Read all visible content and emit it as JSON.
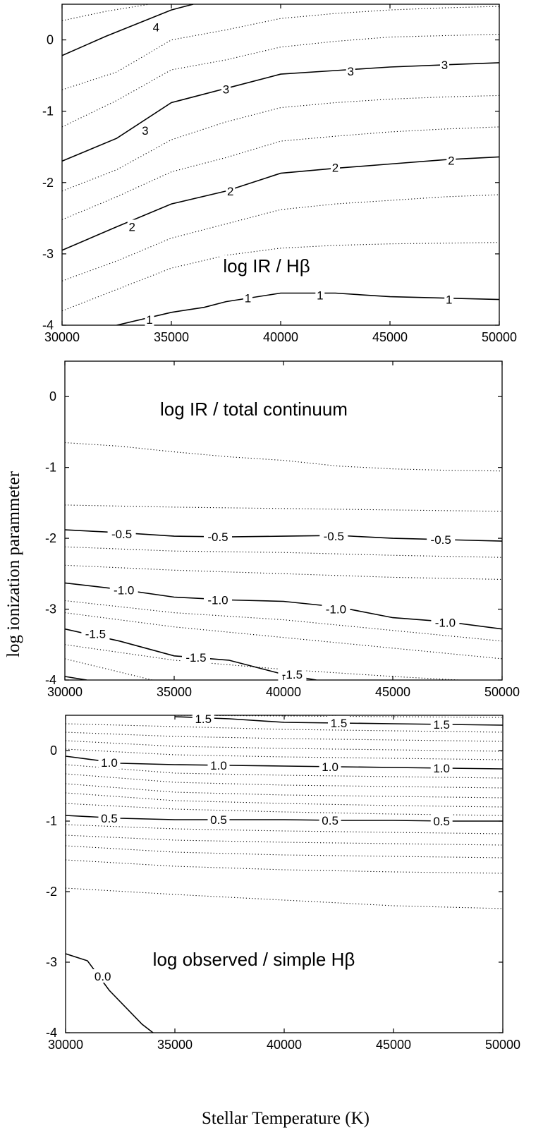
{
  "figure": {
    "xlabel": "Stellar Temperature (K)",
    "ylabel": "log ionization parammeter"
  },
  "chart_data": [
    {
      "type": "line",
      "subtype": "contour",
      "title": "log IR / Hβ",
      "x_ticks": [
        "30000",
        "35000",
        "40000",
        "45000",
        "50000"
      ],
      "y_ticks": [
        "0",
        "-1",
        "-2",
        "-3",
        "-4"
      ],
      "xlim": [
        30000,
        50000
      ],
      "ylim": [
        -4,
        0.5
      ],
      "levels": [
        {
          "label": "4",
          "style": "solid",
          "x": [
            30000,
            32000,
            35000,
            36000
          ],
          "y": [
            -0.22,
            0.05,
            0.42,
            0.5
          ],
          "label_at": [
            [
              34300,
              0.18
            ]
          ]
        },
        {
          "label": "3",
          "style": "solid",
          "x": [
            30000,
            32500,
            35000,
            37500,
            40000,
            42500,
            45000,
            47500,
            50000
          ],
          "y": [
            -1.7,
            -1.38,
            -0.88,
            -0.68,
            -0.48,
            -0.43,
            -0.38,
            -0.35,
            -0.32
          ],
          "label_at": [
            [
              33800,
              -1.27
            ],
            [
              37500,
              -0.69
            ],
            [
              43200,
              -0.44
            ],
            [
              47500,
              -0.35
            ]
          ]
        },
        {
          "label": "2",
          "style": "solid",
          "x": [
            30000,
            32500,
            35000,
            37500,
            40000,
            42500,
            45000,
            47500,
            50000
          ],
          "y": [
            -2.95,
            -2.62,
            -2.3,
            -2.12,
            -1.87,
            -1.8,
            -1.74,
            -1.68,
            -1.64
          ],
          "label_at": [
            [
              33200,
              -2.62
            ],
            [
              37700,
              -2.12
            ],
            [
              42500,
              -1.79
            ],
            [
              47800,
              -1.69
            ]
          ]
        },
        {
          "label": "1",
          "style": "solid",
          "x": [
            32500,
            35000,
            36500,
            37500,
            40000,
            42500,
            45000,
            47500,
            50000
          ],
          "y": [
            -4.0,
            -3.82,
            -3.75,
            -3.67,
            -3.55,
            -3.55,
            -3.6,
            -3.62,
            -3.64
          ],
          "label_at": [
            [
              34000,
              -3.92
            ],
            [
              38500,
              -3.62
            ],
            [
              41800,
              -3.58
            ],
            [
              47700,
              -3.64
            ]
          ]
        },
        {
          "style": "dotted",
          "x": [
            30000,
            32000,
            34000,
            36000
          ],
          "y": [
            0.27,
            0.4,
            0.5,
            0.5
          ]
        },
        {
          "style": "dotted",
          "x": [
            30000,
            32500,
            35000,
            37500,
            40000,
            42500,
            45000,
            47500,
            50000
          ],
          "y": [
            -0.7,
            -0.45,
            0.0,
            0.14,
            0.3,
            0.37,
            0.42,
            0.45,
            0.47
          ]
        },
        {
          "style": "dotted",
          "x": [
            30000,
            32500,
            35000,
            37500,
            40000,
            42500,
            45000,
            47500,
            50000
          ],
          "y": [
            -1.22,
            -0.85,
            -0.42,
            -0.28,
            -0.1,
            -0.02,
            0.04,
            0.06,
            0.08
          ]
        },
        {
          "style": "dotted",
          "x": [
            30000,
            32500,
            35000,
            37500,
            40000,
            42500,
            45000,
            47500,
            50000
          ],
          "y": [
            -2.12,
            -1.82,
            -1.4,
            -1.15,
            -0.95,
            -0.88,
            -0.83,
            -0.8,
            -0.78
          ]
        },
        {
          "style": "dotted",
          "x": [
            30000,
            32500,
            35000,
            37500,
            40000,
            42500,
            45000,
            47500,
            50000
          ],
          "y": [
            -2.52,
            -2.2,
            -1.85,
            -1.65,
            -1.42,
            -1.35,
            -1.29,
            -1.25,
            -1.22
          ]
        },
        {
          "style": "dotted",
          "x": [
            30000,
            32500,
            35000,
            37500,
            40000,
            42500,
            45000,
            47500,
            50000
          ],
          "y": [
            -3.38,
            -3.1,
            -2.78,
            -2.58,
            -2.38,
            -2.3,
            -2.25,
            -2.2,
            -2.17
          ]
        },
        {
          "style": "dotted",
          "x": [
            30000,
            32500,
            35000,
            37500,
            40000,
            42500,
            45000,
            47500,
            50000
          ],
          "y": [
            -3.8,
            -3.5,
            -3.2,
            -3.02,
            -2.92,
            -2.88,
            -2.86,
            -2.85,
            -2.84
          ]
        }
      ]
    },
    {
      "type": "line",
      "subtype": "contour",
      "title": "log IR / total continuum",
      "x_ticks": [
        "30000",
        "35000",
        "40000",
        "45000",
        "50000"
      ],
      "y_ticks": [
        "0",
        "-1",
        "-2",
        "-3",
        "-4"
      ],
      "xlim": [
        30000,
        50000
      ],
      "ylim": [
        -4,
        0.5
      ],
      "levels": [
        {
          "style": "dotted",
          "x": [
            30000,
            32500,
            35000,
            37500,
            40000,
            42500,
            45000,
            47500,
            50000
          ],
          "y": [
            -0.65,
            -0.7,
            -0.78,
            -0.85,
            -0.9,
            -0.98,
            -1.02,
            -1.04,
            -1.05
          ]
        },
        {
          "style": "dotted",
          "x": [
            30000,
            35000,
            40000,
            45000,
            50000
          ],
          "y": [
            -1.53,
            -1.56,
            -1.58,
            -1.6,
            -1.62
          ]
        },
        {
          "label": "-0.5",
          "style": "solid",
          "x": [
            30000,
            32500,
            35000,
            37500,
            40000,
            42500,
            45000,
            47500,
            50000
          ],
          "y": [
            -1.88,
            -1.92,
            -1.97,
            -1.98,
            -1.97,
            -1.96,
            -2.0,
            -2.02,
            -2.04
          ]
        },
        {
          "style": "dotted",
          "x": [
            30000,
            35000,
            40000,
            45000,
            50000
          ],
          "y": [
            -2.12,
            -2.18,
            -2.2,
            -2.24,
            -2.27
          ]
        },
        {
          "style": "dotted",
          "x": [
            30000,
            35000,
            40000,
            45000,
            50000
          ],
          "y": [
            -2.38,
            -2.45,
            -2.5,
            -2.55,
            -2.58
          ]
        },
        {
          "label": "-1.0",
          "style": "solid",
          "x": [
            30000,
            32500,
            35000,
            37500,
            40000,
            42500,
            45000,
            47500,
            50000
          ],
          "y": [
            -2.63,
            -2.72,
            -2.83,
            -2.87,
            -2.89,
            -2.97,
            -3.12,
            -3.18,
            -3.28
          ]
        },
        {
          "style": "dotted",
          "x": [
            30000,
            35000,
            40000,
            45000,
            50000
          ],
          "y": [
            -2.88,
            -3.05,
            -3.15,
            -3.3,
            -3.45
          ]
        },
        {
          "style": "dotted",
          "x": [
            30000,
            35000,
            40000,
            45000,
            50000
          ],
          "y": [
            -3.05,
            -3.25,
            -3.4,
            -3.55,
            -3.7
          ]
        },
        {
          "label": "-1.5",
          "style": "solid",
          "x": [
            30000,
            32500,
            35000,
            37500,
            40000,
            41500
          ],
          "y": [
            -3.28,
            -3.45,
            -3.66,
            -3.72,
            -3.92,
            -4.0
          ]
        },
        {
          "style": "dotted",
          "x": [
            30000,
            35000,
            40000,
            45000,
            48000
          ],
          "y": [
            -3.5,
            -3.72,
            -3.85,
            -3.95,
            -4.0
          ]
        },
        {
          "style": "dotted",
          "x": [
            30000,
            32000,
            34000
          ],
          "y": [
            -3.7,
            -3.85,
            -4.0
          ]
        },
        {
          "style": "solid",
          "x": [
            30000,
            31000
          ],
          "y": [
            -3.95,
            -4.0
          ]
        }
      ],
      "labels": [
        {
          "text": "-0.5",
          "x": [
            32600,
            37000,
            42300,
            47200
          ],
          "y": [
            -1.94,
            -1.98,
            -1.97,
            -2.02
          ]
        },
        {
          "text": "-1.0",
          "x": [
            32700,
            37000,
            42400,
            47400
          ],
          "y": [
            -2.73,
            -2.87,
            -3.0,
            -3.19
          ]
        },
        {
          "text": "-1.5",
          "x": [
            31400,
            36000,
            40400
          ],
          "y": [
            -3.35,
            -3.68,
            -3.92
          ]
        }
      ]
    },
    {
      "type": "line",
      "subtype": "contour",
      "title": "log observed / simple Hβ",
      "x_ticks": [
        "30000",
        "35000",
        "40000",
        "45000",
        "50000"
      ],
      "y_ticks": [
        "0",
        "-1",
        "-2",
        "-3",
        "-4"
      ],
      "xlim": [
        30000,
        50000
      ],
      "ylim": [
        -4,
        0.5
      ],
      "levels": [
        {
          "label": "1.5",
          "style": "solid",
          "x": [
            35000,
            37500,
            40000,
            42500,
            45000,
            47500,
            50000
          ],
          "y": [
            0.48,
            0.45,
            0.4,
            0.39,
            0.38,
            0.37,
            0.36
          ]
        },
        {
          "label": "1.0",
          "style": "solid",
          "x": [
            30000,
            32500,
            35000,
            37500,
            40000,
            42500,
            45000,
            47500,
            50000
          ],
          "y": [
            -0.08,
            -0.18,
            -0.2,
            -0.21,
            -0.22,
            -0.23,
            -0.24,
            -0.25,
            -0.26
          ]
        },
        {
          "label": "0.5",
          "style": "solid",
          "x": [
            30000,
            32500,
            35000,
            37500,
            40000,
            42500,
            45000,
            47500,
            50000
          ],
          "y": [
            -0.92,
            -0.96,
            -0.98,
            -0.98,
            -0.98,
            -0.99,
            -0.99,
            -1.0,
            -1.0
          ]
        },
        {
          "label": "0.0",
          "style": "solid",
          "x": [
            30000,
            31000,
            32000,
            33500,
            34000
          ],
          "y": [
            -2.88,
            -2.98,
            -3.4,
            -3.88,
            -4.0
          ]
        },
        {
          "style": "dotted",
          "x": [
            30000,
            35000,
            40000,
            45000,
            50000
          ],
          "y": [
            0.5,
            0.5,
            0.49,
            0.48,
            0.47
          ]
        },
        {
          "style": "dotted",
          "x": [
            30000,
            35000,
            40000,
            45000,
            50000
          ],
          "y": [
            0.38,
            0.34,
            0.3,
            0.28,
            0.26
          ]
        },
        {
          "style": "dotted",
          "x": [
            30000,
            35000,
            40000,
            45000,
            50000
          ],
          "y": [
            0.26,
            0.2,
            0.17,
            0.15,
            0.13
          ]
        },
        {
          "style": "dotted",
          "x": [
            30000,
            35000,
            40000,
            45000,
            50000
          ],
          "y": [
            0.14,
            0.06,
            0.03,
            0.01,
            -0.01
          ]
        },
        {
          "style": "dotted",
          "x": [
            30000,
            35000,
            40000,
            45000,
            50000
          ],
          "y": [
            0.02,
            -0.06,
            -0.09,
            -0.11,
            -0.13
          ]
        },
        {
          "style": "dotted",
          "x": [
            30000,
            35000,
            40000,
            45000,
            50000
          ],
          "y": [
            -0.2,
            -0.32,
            -0.35,
            -0.37,
            -0.39
          ]
        },
        {
          "style": "dotted",
          "x": [
            30000,
            35000,
            40000,
            45000,
            50000
          ],
          "y": [
            -0.33,
            -0.45,
            -0.49,
            -0.51,
            -0.53
          ]
        },
        {
          "style": "dotted",
          "x": [
            30000,
            35000,
            40000,
            45000,
            50000
          ],
          "y": [
            -0.47,
            -0.59,
            -0.63,
            -0.65,
            -0.67
          ]
        },
        {
          "style": "dotted",
          "x": [
            30000,
            35000,
            40000,
            45000,
            50000
          ],
          "y": [
            -0.6,
            -0.71,
            -0.75,
            -0.78,
            -0.8
          ]
        },
        {
          "style": "dotted",
          "x": [
            30000,
            35000,
            40000,
            45000,
            50000
          ],
          "y": [
            -0.75,
            -0.83,
            -0.87,
            -0.9,
            -0.92
          ]
        },
        {
          "style": "dotted",
          "x": [
            30000,
            35000,
            40000,
            45000,
            50000
          ],
          "y": [
            -1.05,
            -1.11,
            -1.14,
            -1.16,
            -1.18
          ]
        },
        {
          "style": "dotted",
          "x": [
            30000,
            35000,
            40000,
            45000,
            50000
          ],
          "y": [
            -1.2,
            -1.27,
            -1.3,
            -1.32,
            -1.34
          ]
        },
        {
          "style": "dotted",
          "x": [
            30000,
            35000,
            40000,
            45000,
            50000
          ],
          "y": [
            -1.35,
            -1.44,
            -1.48,
            -1.5,
            -1.52
          ]
        },
        {
          "style": "dotted",
          "x": [
            30000,
            35000,
            40000,
            45000,
            50000
          ],
          "y": [
            -1.55,
            -1.64,
            -1.69,
            -1.72,
            -1.74
          ]
        },
        {
          "style": "dotted",
          "x": [
            30000,
            35000,
            40000,
            45000,
            50000
          ],
          "y": [
            -1.95,
            -2.04,
            -2.12,
            -2.2,
            -2.24
          ]
        }
      ],
      "labels": [
        {
          "text": "1.5",
          "x": [
            36300,
            42500,
            47200
          ],
          "y": [
            0.45,
            0.39,
            0.37
          ]
        },
        {
          "text": "1.0",
          "x": [
            32000,
            37000,
            42100,
            47200
          ],
          "y": [
            -0.17,
            -0.21,
            -0.23,
            -0.25
          ]
        },
        {
          "text": "0.5",
          "x": [
            32000,
            37000,
            42100,
            47200
          ],
          "y": [
            -0.96,
            -0.98,
            -0.99,
            -1.0
          ]
        },
        {
          "text": "0.0",
          "x": [
            31700
          ],
          "y": [
            -3.2
          ]
        }
      ]
    }
  ]
}
